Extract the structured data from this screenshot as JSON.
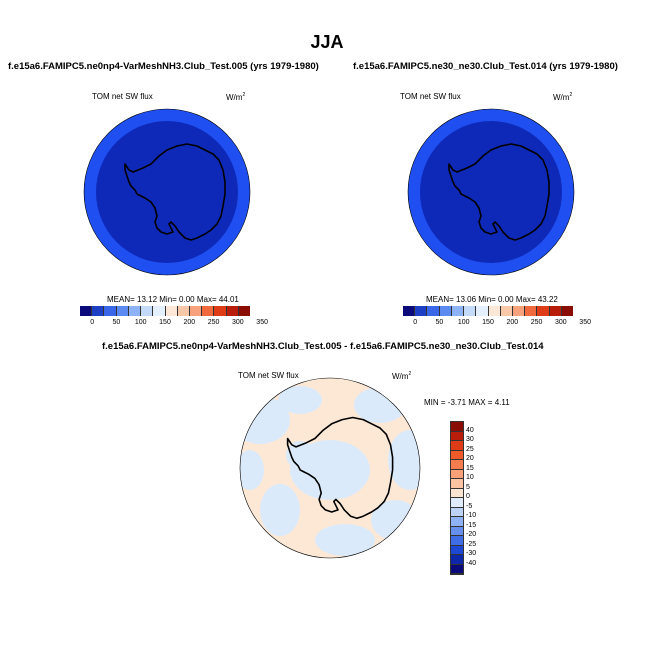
{
  "season": "JJA",
  "panels": [
    {
      "case": "f.e15a6.FAMIPC5.ne0np4-VarMeshNH3.Club_Test.005 (yrs 1979-1980)",
      "variable": "TOM net SW flux",
      "units": "W/m",
      "units_sup": "2",
      "stats": "MEAN=  13.12  Min=   0.00  Max=  44.01",
      "colors": {
        "ocean_ring": "#1f4ff0",
        "interior": "#0e29b8"
      }
    },
    {
      "case": "f.e15a6.FAMIPC5.ne30_ne30.Club_Test.014 (yrs 1979-1980)",
      "variable": "TOM net SW flux",
      "units": "W/m",
      "units_sup": "2",
      "stats": "MEAN=  13.06  Min=   0.00  Max=  43.22",
      "colors": {
        "ocean_ring": "#1f4ff0",
        "interior": "#0e29b8"
      }
    }
  ],
  "abs_colorbar": {
    "labels": [
      "0",
      "50",
      "100",
      "150",
      "200",
      "250",
      "300",
      "350"
    ],
    "colors": [
      "#0a0a7a",
      "#1d3fc4",
      "#3a66e8",
      "#5b8af0",
      "#8eb2f6",
      "#c4daf9",
      "#e4efff",
      "#fde8d8",
      "#f9c8a8",
      "#f7a27c",
      "#f06a3e",
      "#de3c16",
      "#b81d0a",
      "#8a0d04"
    ]
  },
  "diff_panel": {
    "title": "f.e15a6.FAMIPC5.ne0np4-VarMeshNH3.Club_Test.005 - f.e15a6.FAMIPC5.ne30_ne30.Club_Test.014",
    "variable": "TOM net SW flux",
    "units": "W/m",
    "units_sup": "2",
    "stats": "MIN =  -3.71 MAX =   4.11",
    "colors": {
      "positive": "#fde8d6",
      "negative": "#dbeafa"
    }
  },
  "diff_colorbar": {
    "labels": [
      "40",
      "30",
      "25",
      "20",
      "15",
      "10",
      "5",
      "0",
      "-5",
      "-10",
      "-15",
      "-20",
      "-25",
      "-30",
      "-40"
    ],
    "colors": [
      "#8a0d04",
      "#b81d0a",
      "#de3c16",
      "#f05a28",
      "#f57c4c",
      "#f8a077",
      "#fbc3a2",
      "#fde4d0",
      "#e0ecfb",
      "#bcd3f7",
      "#8eb2f3",
      "#668fee",
      "#3f6de6",
      "#1d48d2",
      "#0e27a8",
      "#0a0a7a"
    ]
  }
}
